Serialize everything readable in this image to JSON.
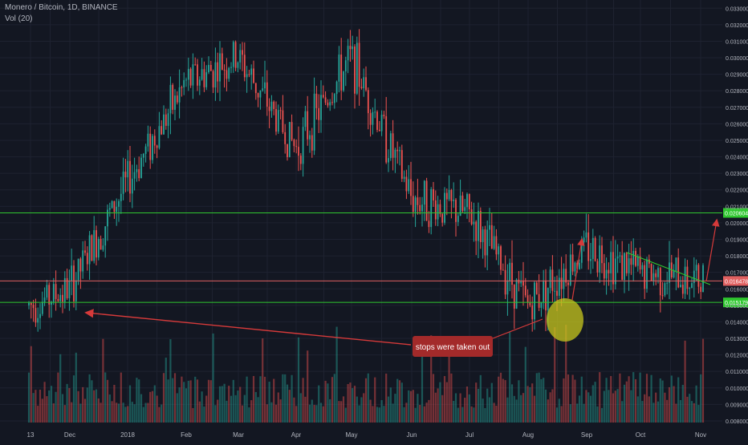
{
  "header": {
    "title": "Monero / Bitcoin, 1D, BINANCE",
    "volume_indicator": "Vol (20)"
  },
  "colors": {
    "background": "#131722",
    "grid": "#1e2230",
    "axis_text": "#b2b5be",
    "up": "#26a69a",
    "down": "#ef5350",
    "level_green": "#2fc72f",
    "level_red": "#e06060",
    "annotation_red": "#d63a3a",
    "highlight": "#c8c81e",
    "callout_bg": "#a32a2a",
    "callout_text": "#ffffff"
  },
  "chart_data": {
    "type": "candlestick",
    "title": "Monero / Bitcoin, 1D, BINANCE",
    "y_scale": "linear",
    "ylim": [
      0.0079,
      0.0335
    ],
    "y_ticks": [
      "0.033000",
      "0.032000",
      "0.031000",
      "0.030000",
      "0.029000",
      "0.028000",
      "0.027000",
      "0.026000",
      "0.025000",
      "0.024000",
      "0.023000",
      "0.022000",
      "0.021000",
      "0.020000",
      "0.019000",
      "0.018000",
      "0.017000",
      "0.016000",
      "0.015000",
      "0.014000",
      "0.013000",
      "0.012000",
      "0.011000",
      "0.010000",
      "0.009000",
      "0.008000"
    ],
    "x_ticks": [
      "13",
      "Dec",
      "2018",
      "Feb",
      "Mar",
      "Apr",
      "May",
      "Jun",
      "Jul",
      "Aug",
      "Sep",
      "Oct",
      "Nov"
    ],
    "grid": true,
    "price_path_approx": [
      [
        "13",
        0.015
      ],
      [
        "Dec",
        0.016
      ],
      [
        "2018",
        0.0225
      ],
      [
        "Feb",
        0.0285
      ],
      [
        "Mar",
        0.03
      ],
      [
        "Apr",
        0.0245
      ],
      [
        "May",
        0.03
      ],
      [
        "Jun",
        0.0215
      ],
      [
        "Jul",
        0.0205
      ],
      [
        "Aug",
        0.015
      ],
      [
        "Sep",
        0.0185
      ],
      [
        "Oct",
        0.017
      ],
      [
        "Nov",
        0.01645
      ]
    ],
    "levels": [
      {
        "label": "0.020604",
        "value": 0.020604,
        "color": "#2fc72f"
      },
      {
        "label": "0.016478",
        "value": 0.016478,
        "color": "#e06060"
      },
      {
        "label": "0.015179",
        "value": 0.015179,
        "color": "#2fc72f"
      }
    ],
    "annotations": [
      {
        "text": "stops were taken out",
        "type": "callout"
      }
    ],
    "volume_indicator": "Vol (20)"
  }
}
